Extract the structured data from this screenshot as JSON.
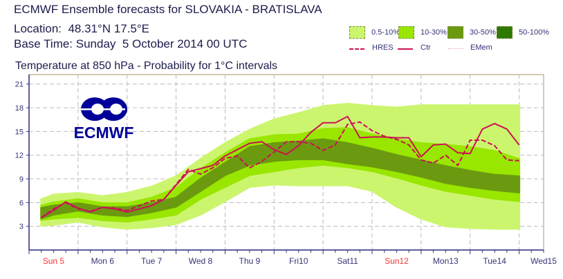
{
  "header": {
    "title": "ECMWF Ensemble forecasts for SLOVAKIA - BRATISLAVA",
    "location": "Location:  48.31°N 17.5°E",
    "base_time": "Base Time: Sunday  5 October 2014 00 UTC"
  },
  "legend": {
    "bands": [
      {
        "label": "0.5-10%",
        "color": "#ccf56e"
      },
      {
        "label": "10-30%",
        "color": "#99e600"
      },
      {
        "label": "30-50%",
        "color": "#6b9a10"
      },
      {
        "label": "50-100%",
        "color": "#2e7a00"
      }
    ],
    "lines": [
      {
        "label": "HRES",
        "style": "dashed",
        "color": "#cc1155"
      },
      {
        "label": "Ctr",
        "style": "solid",
        "color": "#cc1155"
      },
      {
        "label": "EMem",
        "style": "dotted",
        "color": "#f0a0b8"
      }
    ]
  },
  "logo": {
    "text": "ECMWF",
    "color": "#000099"
  },
  "chart_data": {
    "type": "line",
    "title": "Temperature at 850 hPa - Probability for 1°C intervals",
    "xlabel": "",
    "ylabel": "",
    "x_unit": "hours since Sun 5 Oct 2014 00 UTC",
    "xlim": [
      0,
      252
    ],
    "ylim": [
      0,
      22.2
    ],
    "yticks": [
      3,
      6,
      9,
      12,
      15,
      18,
      21
    ],
    "xtick_labels": [
      {
        "label": "Sun 5",
        "weekend": true
      },
      {
        "label": "Mon 6",
        "weekend": false
      },
      {
        "label": "Tue 7",
        "weekend": false
      },
      {
        "label": "Wed 8",
        "weekend": false
      },
      {
        "label": "Thu 9",
        "weekend": false
      },
      {
        "label": "Fri10",
        "weekend": false
      },
      {
        "label": "Sat11",
        "weekend": false
      },
      {
        "label": "Sun12",
        "weekend": true
      },
      {
        "label": "Mon13",
        "weekend": false
      },
      {
        "label": "Tue14",
        "weekend": false
      },
      {
        "label": "Wed15",
        "weekend": false
      }
    ],
    "grid": true,
    "weekend_color": "#ff3333",
    "series": [
      {
        "name": "Ctr",
        "style": "solid",
        "x": [
          6,
          12,
          18,
          24,
          30,
          36,
          42,
          48,
          54,
          60,
          66,
          72,
          78,
          84,
          90,
          96,
          102,
          108,
          114,
          120,
          126,
          132,
          138,
          144,
          150,
          156,
          162,
          168,
          174,
          180,
          186,
          192,
          198,
          204,
          210,
          216,
          222,
          228,
          234,
          240
        ],
        "y": [
          4.1,
          5.0,
          6.1,
          5.3,
          4.8,
          5.4,
          5.2,
          4.8,
          5.2,
          5.6,
          6.4,
          8.2,
          9.9,
          10.3,
          10.7,
          11.9,
          12.7,
          13.5,
          13.7,
          12.7,
          12.1,
          13.2,
          14.9,
          16.1,
          16.1,
          16.9,
          14.2,
          14.3,
          14.3,
          14.2,
          14.2,
          11.8,
          13.3,
          13.4,
          12.3,
          12.2,
          15.3,
          16.0,
          15.3,
          13.3
        ]
      },
      {
        "name": "HRES",
        "style": "dashed",
        "x": [
          6,
          12,
          18,
          24,
          30,
          36,
          42,
          48,
          54,
          60,
          66,
          72,
          78,
          84,
          90,
          96,
          102,
          108,
          114,
          120,
          126,
          132,
          138,
          144,
          150,
          156,
          162,
          168,
          174,
          180,
          186,
          192,
          198,
          204,
          210,
          216,
          222,
          228,
          234,
          240
        ],
        "y": [
          4.1,
          5.2,
          6.0,
          5.2,
          4.9,
          5.4,
          5.3,
          5.0,
          5.6,
          6.2,
          6.4,
          8.3,
          10.2,
          9.6,
          10.4,
          11.6,
          11.9,
          10.4,
          11.2,
          12.4,
          13.7,
          13.7,
          13.5,
          12.6,
          13.3,
          15.9,
          16.2,
          15.1,
          14.4,
          14.0,
          13.3,
          11.4,
          11.0,
          12.0,
          10.7,
          13.9,
          13.9,
          13.2,
          11.4,
          11.3
        ]
      }
    ],
    "probability_bands": {
      "x": [
        6,
        12,
        24,
        36,
        48,
        60,
        72,
        84,
        96,
        108,
        120,
        132,
        144,
        156,
        168,
        180,
        192,
        204,
        216,
        228,
        240
      ],
      "p0_5_10": {
        "low": [
          3.1,
          3.2,
          3.6,
          3.0,
          2.7,
          2.9,
          3.3,
          4.5,
          6.2,
          8.0,
          8.3,
          8.2,
          8.2,
          8.2,
          7.5,
          5.5,
          4.0,
          3.0,
          2.8,
          2.7,
          2.7
        ],
        "high": [
          6.4,
          7.0,
          7.2,
          6.8,
          7.2,
          8.0,
          9.3,
          11.5,
          13.5,
          15.2,
          16.5,
          17.3,
          18.2,
          18.5,
          18.2,
          18.0,
          18.3,
          18.3,
          18.3,
          18.3,
          18.3
        ]
      },
      "p10_30": {
        "low": [
          3.8,
          4.0,
          4.2,
          3.8,
          3.6,
          4.0,
          4.5,
          6.5,
          8.0,
          9.5,
          10.0,
          10.5,
          10.8,
          10.5,
          10.0,
          9.2,
          8.3,
          7.5,
          7.0,
          6.5,
          6.2
        ],
        "high": [
          5.6,
          6.0,
          6.4,
          5.9,
          5.9,
          6.6,
          7.8,
          10.2,
          12.2,
          14.0,
          14.5,
          14.6,
          15.3,
          15.4,
          14.6,
          14.0,
          13.5,
          13.3,
          13.0,
          12.5,
          11.5
        ]
      },
      "p30_50": {
        "low": [
          4.0,
          4.5,
          5.0,
          4.5,
          4.3,
          4.8,
          5.5,
          7.5,
          9.5,
          10.8,
          11.3,
          11.5,
          11.5,
          11.0,
          10.6,
          10.0,
          9.3,
          8.5,
          8.0,
          7.6,
          7.3
        ],
        "high": [
          5.3,
          5.6,
          5.9,
          5.4,
          5.4,
          5.9,
          6.6,
          9.0,
          11.0,
          13.0,
          13.5,
          13.7,
          14.0,
          13.5,
          12.8,
          12.0,
          11.3,
          10.6,
          10.0,
          9.5,
          9.3
        ]
      }
    }
  }
}
